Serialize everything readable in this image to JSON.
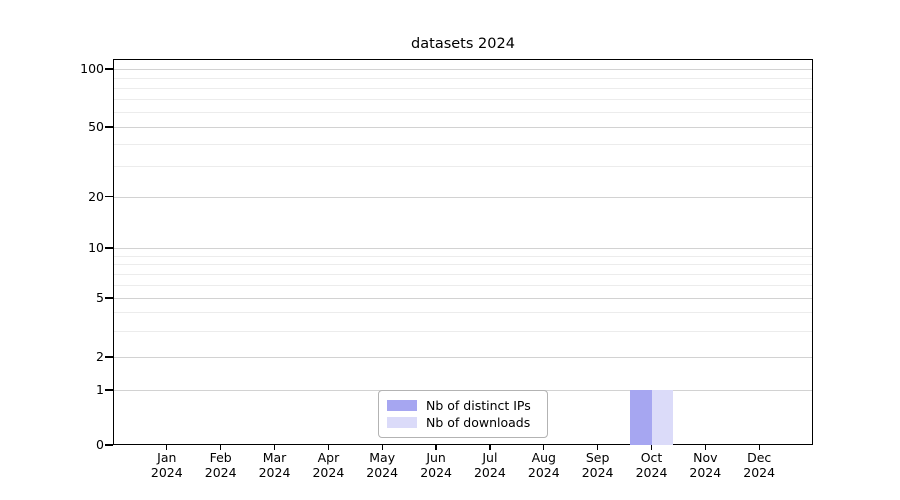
{
  "title": "datasets 2024",
  "chart_data": {
    "type": "bar",
    "title": "datasets 2024",
    "categories": [
      "Jan 2024",
      "Feb 2024",
      "Mar 2024",
      "Apr 2024",
      "May 2024",
      "Jun 2024",
      "Jul 2024",
      "Aug 2024",
      "Sep 2024",
      "Oct 2024",
      "Nov 2024",
      "Dec 2024"
    ],
    "series": [
      {
        "name": "Nb of distinct IPs",
        "color": "#a6a6f1",
        "values": [
          0,
          0,
          0,
          0,
          0,
          0,
          0,
          0,
          0,
          1,
          0,
          0
        ]
      },
      {
        "name": "Nb of downloads",
        "color": "#dbdbf9",
        "values": [
          0,
          0,
          0,
          0,
          0,
          0,
          0,
          0,
          0,
          1,
          0,
          0
        ]
      }
    ],
    "xlabel": "",
    "ylabel": "",
    "y_axis": {
      "scale": "symlog",
      "ticks": [
        0,
        1,
        2,
        5,
        10,
        20,
        50,
        100
      ],
      "ylim": [
        0,
        112
      ]
    },
    "grid": true,
    "legend_position": "lower center inside plot"
  },
  "legend": {
    "items": [
      {
        "label": "Nb of distinct IPs",
        "color": "#a6a6f1"
      },
      {
        "label": "Nb of downloads",
        "color": "#dbdbf9"
      }
    ]
  },
  "colors": {
    "background": "#ffffff",
    "spine": "#000000",
    "grid_major": "#d2d2d2",
    "grid_minor": "#ececec",
    "text": "#000000"
  }
}
